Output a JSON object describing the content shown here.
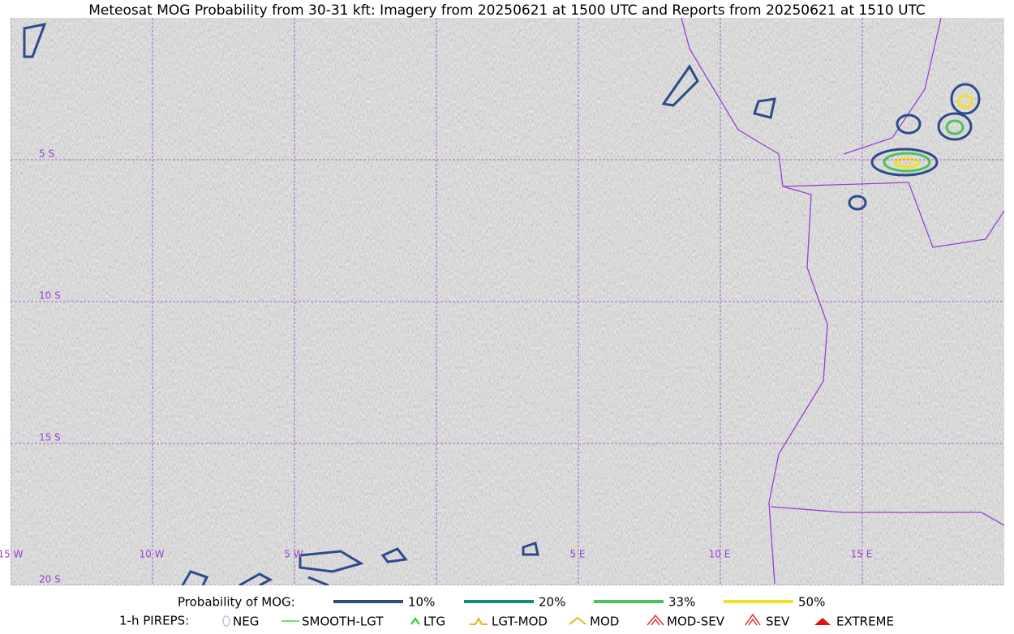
{
  "title": "Meteosat MOG Probability from 30-31 kft: Imagery from 20250621 at 1500 UTC and Reports from 20250621 at 1510 UTC",
  "map": {
    "lon_labels": [
      "15 W",
      "10 W",
      "5 W",
      "5 E",
      "10 E",
      "15 E"
    ],
    "lat_labels": [
      "5 S",
      "10 S",
      "15 S",
      "20 S"
    ],
    "grid_color": "#9a40d0"
  },
  "legend": {
    "mog_title": "Probability of MOG:",
    "mog_items": [
      {
        "label": "10%",
        "color": "#2e4a8a"
      },
      {
        "label": "20%",
        "color": "#1a8a80"
      },
      {
        "label": "33%",
        "color": "#4cc35a"
      },
      {
        "label": "50%",
        "color": "#f5e020"
      }
    ],
    "pirep_title": "1-h PIREPS:",
    "pirep_items": [
      {
        "label": "NEG",
        "color": "#c0c0f0"
      },
      {
        "label": "SMOOTH-LGT",
        "color": "#33dd33"
      },
      {
        "label": "LTG",
        "color": "#22cc22"
      },
      {
        "label": "LGT-MOD",
        "color": "#f0b020"
      },
      {
        "label": "MOD",
        "color": "#f0b020"
      },
      {
        "label": "MOD-SEV",
        "color": "#e03030"
      },
      {
        "label": "SEV",
        "color": "#e03030"
      },
      {
        "label": "EXTREME",
        "color": "#e01010"
      }
    ]
  }
}
